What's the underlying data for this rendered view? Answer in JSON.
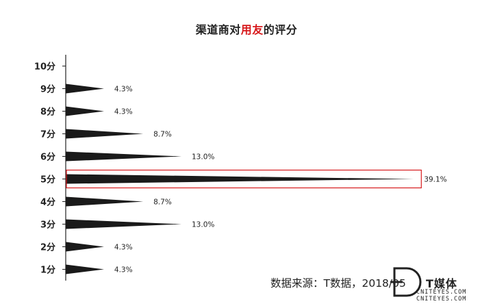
{
  "title": {
    "before": "渠道商对",
    "highlight": "用友",
    "after": "的评分"
  },
  "chart_data": {
    "type": "bar",
    "orientation": "horizontal",
    "bar_shape": "tapered-spike",
    "categories": [
      "10分",
      "9分",
      "8分",
      "7分",
      "6分",
      "5分",
      "4分",
      "3分",
      "2分",
      "1分"
    ],
    "values": [
      0,
      4.3,
      4.3,
      8.7,
      13.0,
      39.1,
      8.7,
      13.0,
      4.3,
      4.3
    ],
    "value_labels": [
      "",
      "4.3%",
      "4.3%",
      "8.7%",
      "13.0%",
      "39.1%",
      "8.7%",
      "13.0%",
      "4.3%",
      "4.3%"
    ],
    "highlighted_category": "5分",
    "xlim": [
      0,
      40
    ],
    "grid": false,
    "legend": "none",
    "colors": {
      "bar": "#1a1a1a",
      "highlight_box": "#d7191c",
      "title_highlight": "#d7191c"
    }
  },
  "source": "数据来源：T数据，2018/05",
  "brand": {
    "name": "T媒体",
    "url1": "CNITEYES.COM",
    "url2": "CNITEYES.COM"
  }
}
